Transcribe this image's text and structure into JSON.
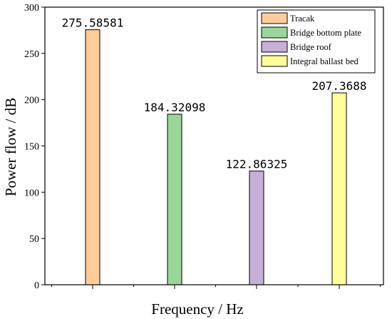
{
  "chart_data": {
    "type": "bar",
    "categories": [
      "Tracak",
      "Bridge bottom plate",
      "Bridge roof",
      "Integral ballast bed"
    ],
    "series": [
      {
        "values": [
          275.58581,
          184.32098,
          122.86325,
          207.3688
        ],
        "data_labels": [
          "275.58581",
          "184.32098",
          "122.86325",
          "207.3688"
        ]
      }
    ],
    "colors": [
      "#FFCC99",
      "#99D699",
      "#C4B0D8",
      "#FFFF99"
    ],
    "xlabel": "Frequency / Hz",
    "ylabel": "Power flow / dB",
    "ylim": [
      0,
      300
    ],
    "yticks": [
      "0",
      "50",
      "100",
      "150",
      "200",
      "250",
      "300"
    ],
    "legend": {
      "placement": "top-right",
      "entries": [
        "Tracak",
        "Bridge bottom plate",
        "Bridge roof",
        "Integral ballast bed"
      ]
    },
    "grid": false
  }
}
